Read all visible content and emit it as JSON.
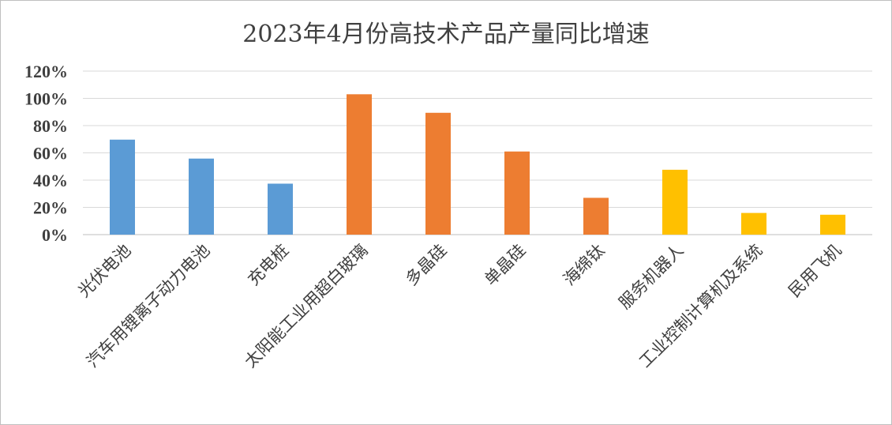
{
  "chart_data": {
    "type": "bar",
    "title": "2023年4月份高技术产品产量同比增速",
    "xlabel": "",
    "ylabel": "",
    "ylim": [
      0,
      120
    ],
    "ytick_step": 20,
    "ytick_labels": [
      "0%",
      "20%",
      "40%",
      "60%",
      "80%",
      "100%",
      "120%"
    ],
    "grid": true,
    "legend": "none",
    "categories": [
      "光伏电池",
      "汽车用锂离子动力电池",
      "充电桩",
      "太阳能工业用超白玻璃",
      "多晶硅",
      "单晶硅",
      "海绵钛",
      "服务机器人",
      "工业控制计算机及系统",
      "民用飞机"
    ],
    "values": [
      69.7,
      55.8,
      37.4,
      103.0,
      89.4,
      61.0,
      27.0,
      47.6,
      15.9,
      14.6
    ],
    "colors": [
      "#5b9bd5",
      "#5b9bd5",
      "#5b9bd5",
      "#ed7d31",
      "#ed7d31",
      "#ed7d31",
      "#ed7d31",
      "#ffc000",
      "#ffc000",
      "#ffc000"
    ]
  }
}
